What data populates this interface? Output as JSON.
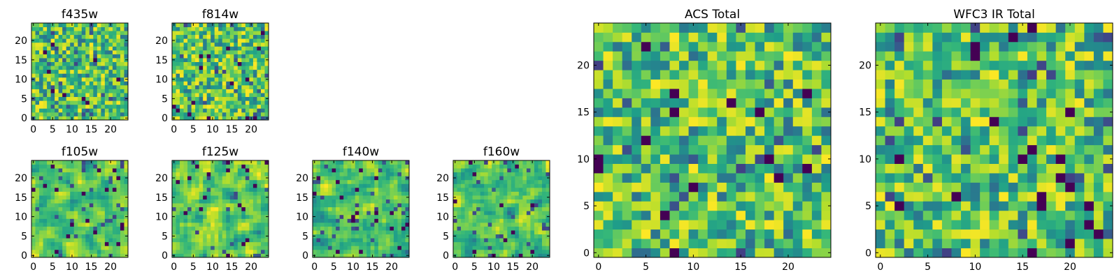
{
  "chart_data": [
    {
      "type": "heatmap",
      "title": "f435w",
      "xlim": [
        0,
        24
      ],
      "ylim": [
        0,
        24
      ],
      "x_ticks": [
        "0",
        "5",
        "10",
        "15",
        "20"
      ],
      "y_ticks": [
        "0",
        "5",
        "10",
        "15",
        "20"
      ],
      "grid_size": 25,
      "colormap": "viridis",
      "seed": 11,
      "smooth": false
    },
    {
      "type": "heatmap",
      "title": "f814w",
      "xlim": [
        0,
        24
      ],
      "ylim": [
        0,
        24
      ],
      "x_ticks": [
        "0",
        "5",
        "10",
        "15",
        "20"
      ],
      "y_ticks": [
        "0",
        "5",
        "10",
        "15",
        "20"
      ],
      "grid_size": 25,
      "colormap": "viridis",
      "seed": 23,
      "smooth": false
    },
    {
      "type": "heatmap",
      "title": "f105w",
      "xlim": [
        0,
        24
      ],
      "ylim": [
        0,
        24
      ],
      "x_ticks": [
        "0",
        "5",
        "10",
        "15",
        "20"
      ],
      "y_ticks": [
        "0",
        "5",
        "10",
        "15",
        "20"
      ],
      "grid_size": 25,
      "colormap": "viridis",
      "seed": 37,
      "smooth": true
    },
    {
      "type": "heatmap",
      "title": "f125w",
      "xlim": [
        0,
        24
      ],
      "ylim": [
        0,
        24
      ],
      "x_ticks": [
        "0",
        "5",
        "10",
        "15",
        "20"
      ],
      "y_ticks": [
        "0",
        "5",
        "10",
        "15",
        "20"
      ],
      "grid_size": 25,
      "colormap": "viridis",
      "seed": 41,
      "smooth": true
    },
    {
      "type": "heatmap",
      "title": "f140w",
      "xlim": [
        0,
        24
      ],
      "ylim": [
        0,
        24
      ],
      "x_ticks": [
        "0",
        "5",
        "10",
        "15",
        "20"
      ],
      "y_ticks": [
        "0",
        "5",
        "10",
        "15",
        "20"
      ],
      "grid_size": 25,
      "colormap": "viridis",
      "seed": 53,
      "smooth": true
    },
    {
      "type": "heatmap",
      "title": "f160w",
      "xlim": [
        0,
        24
      ],
      "ylim": [
        0,
        24
      ],
      "x_ticks": [
        "0",
        "5",
        "10",
        "15",
        "20"
      ],
      "y_ticks": [
        "0",
        "5",
        "10",
        "15",
        "20"
      ],
      "grid_size": 25,
      "colormap": "viridis",
      "seed": 67,
      "smooth": true
    },
    {
      "type": "heatmap",
      "title": "ACS Total",
      "xlim": [
        0,
        24
      ],
      "ylim": [
        0,
        24
      ],
      "x_ticks": [
        "0",
        "5",
        "10",
        "15",
        "20"
      ],
      "y_ticks": [
        "0",
        "5",
        "10",
        "15",
        "20"
      ],
      "grid_size": 25,
      "colormap": "viridis",
      "seed": 79,
      "smooth": false
    },
    {
      "type": "heatmap",
      "title": "WFC3 IR Total",
      "xlim": [
        0,
        24
      ],
      "ylim": [
        0,
        24
      ],
      "x_ticks": [
        "0",
        "5",
        "10",
        "15",
        "20"
      ],
      "y_ticks": [
        "0",
        "5",
        "10",
        "15",
        "20"
      ],
      "grid_size": 25,
      "colormap": "viridis",
      "seed": 97,
      "smooth": false
    }
  ]
}
